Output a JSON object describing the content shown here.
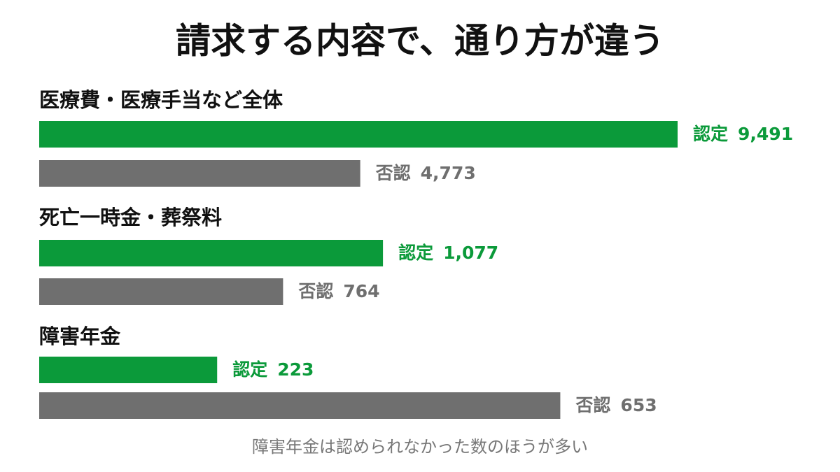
{
  "title": "請求する内容で、通り方が違う",
  "chart_data": [
    {
      "type": "bar",
      "orientation": "horizontal",
      "title": "医療費・医療手当など全体",
      "xlim": [
        0,
        9491
      ],
      "series": [
        {
          "name": "認定",
          "color": "#0b9a3a",
          "values": [
            9491
          ],
          "value_labels": [
            "9,491"
          ]
        },
        {
          "name": "否認",
          "color": "#6f6f6f",
          "values": [
            4773
          ],
          "value_labels": [
            "4,773"
          ]
        }
      ]
    },
    {
      "type": "bar",
      "orientation": "horizontal",
      "title": "死亡一時金・葬祭料",
      "xlim": [
        0,
        2000
      ],
      "series": [
        {
          "name": "認定",
          "color": "#0b9a3a",
          "values": [
            1077
          ],
          "value_labels": [
            "1,077"
          ]
        },
        {
          "name": "否認",
          "color": "#6f6f6f",
          "values": [
            764
          ]
        }
      ]
    },
    {
      "type": "bar",
      "orientation": "horizontal",
      "title": "障害年金",
      "xlim": [
        0,
        800
      ],
      "series": [
        {
          "name": "認定",
          "color": "#0b9a3a",
          "values": [
            223
          ]
        },
        {
          "name": "否認",
          "color": "#6f6f6f",
          "values": [
            653
          ]
        }
      ]
    }
  ],
  "note": "障害年金は認められなかった数のほうが多い"
}
